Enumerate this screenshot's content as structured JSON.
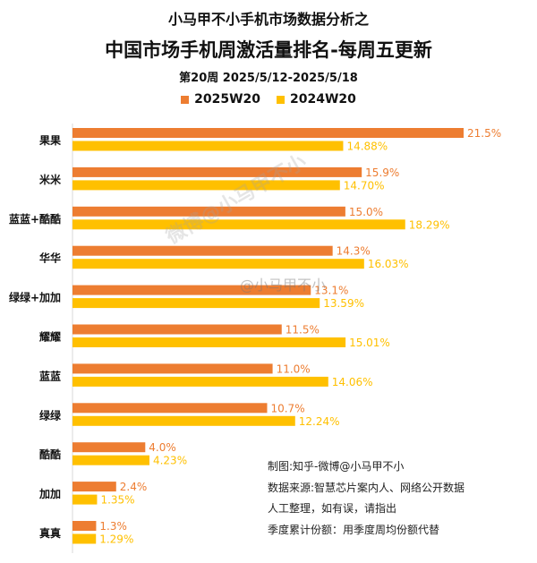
{
  "header": {
    "supertitle": "小马甲不小手机市场数据分析之",
    "title": "中国市场手机周激活量排名-每周五更新",
    "subtitle": "第20周 2025/5/12-2025/5/18"
  },
  "notes": [
    "制图:知乎-微博@小马甲不小",
    "数据来源:智慧芯片案内人、网络公开数据",
    "人工整理，如有误，请指出",
    "季度累计份额：用季度周均份额代替"
  ],
  "watermarks": [
    "微博@小马甲不小",
    "@小马甲不小"
  ],
  "chart_data": {
    "type": "bar",
    "orientation": "horizontal",
    "categories": [
      "果果",
      "米米",
      "蓝蓝+酷酷",
      "华华",
      "绿绿+加加",
      "耀耀",
      "蓝蓝",
      "绿绿",
      "酷酷",
      "加加",
      "真真"
    ],
    "series": [
      {
        "name": "2025W20",
        "color": "#ED7D31",
        "values": [
          21.5,
          15.9,
          15.0,
          14.3,
          13.1,
          11.5,
          11.0,
          10.7,
          4.0,
          2.4,
          1.3
        ],
        "labels": [
          "21.5%",
          "15.9%",
          "15.0%",
          "14.3%",
          "13.1%",
          "11.5%",
          "11.0%",
          "10.7%",
          "4.0%",
          "2.4%",
          "1.3%"
        ]
      },
      {
        "name": "2024W20",
        "color": "#FFC000",
        "values": [
          14.88,
          14.7,
          18.29,
          16.03,
          13.59,
          15.01,
          14.06,
          12.24,
          4.23,
          1.35,
          1.29
        ],
        "labels": [
          "14.88%",
          "14.70%",
          "18.29%",
          "16.03%",
          "13.59%",
          "15.01%",
          "14.06%",
          "12.24%",
          "4.23%",
          "1.35%",
          "1.29%"
        ]
      }
    ],
    "xlim": [
      0,
      21.5
    ],
    "grid": false,
    "legend": "top"
  }
}
